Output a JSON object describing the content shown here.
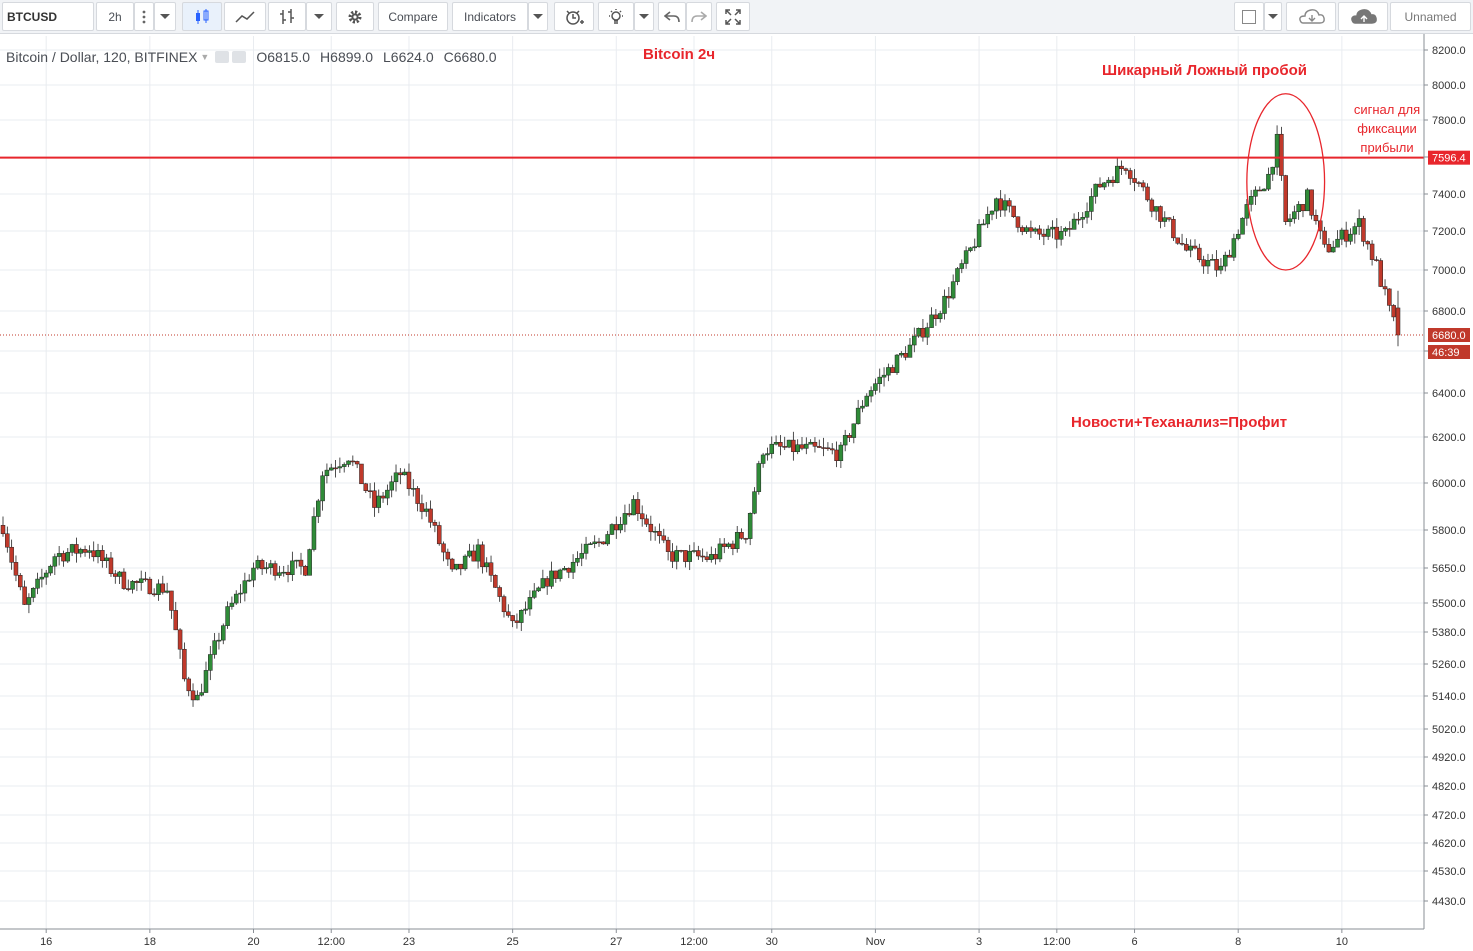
{
  "toolbar": {
    "symbol": "BTCUSD",
    "interval": "2h",
    "compare_label": "Compare",
    "indicators_label": "Indicators",
    "layout_name": "Unnamed"
  },
  "legend": {
    "symbol_title": "Bitcoin / Dollar, 120, BITFINEX",
    "open_label": "O",
    "open": "6815.0",
    "high_label": "H",
    "high": "6899.0",
    "low_label": "L",
    "low": "6624.0",
    "close_label": "C",
    "close": "6680.0"
  },
  "annotations": {
    "title": "Bitcoin 2ч",
    "false_breakout": "Шикарный Ложный пробой",
    "signal_line1": "сигнал для",
    "signal_line2": "фиксации",
    "signal_line3": "прибыли",
    "news": "Новости+Теханализ=Профит"
  },
  "colors": {
    "up": "#2f8b38",
    "down": "#c0392b",
    "resistance": "#e8262c",
    "price_tag": "#e8262c",
    "annotation": "#e8262c",
    "grid": "#e9ecf0"
  },
  "chart_data": {
    "type": "candlestick",
    "symbol": "BTCUSD",
    "exchange": "BITFINEX",
    "interval_minutes": 120,
    "y_scale": "log",
    "ylim": [
      4380,
      8250
    ],
    "yticks": [
      8200,
      8000,
      7800,
      7600,
      7400,
      7200,
      7000,
      6800,
      6600,
      6400,
      6200,
      6000,
      5800,
      5650,
      5500,
      5380,
      5260,
      5140,
      5020,
      4920,
      4820,
      4720,
      4620,
      4530,
      4430
    ],
    "ytick_labels": [
      "8200.0",
      "8000.0",
      "7800.0",
      "7600.0",
      "7400.0",
      "7200.0",
      "7000.0",
      "6800.0",
      "6600.0",
      "6400.0",
      "6200.0",
      "6000.0",
      "5800.0",
      "5650.0",
      "5500.0",
      "5380.0",
      "5260.0",
      "5140.0",
      "5020.0",
      "4920.0",
      "4820.0",
      "4720.0",
      "4620.0",
      "4530.0",
      "4430.0"
    ],
    "xtick_labels": [
      "16",
      "18",
      "20",
      "12:00",
      "23",
      "25",
      "27",
      "12:00",
      "30",
      "Nov",
      "3",
      "12:00",
      "6",
      "8",
      "10"
    ],
    "x_range": [
      "2018-10-15T04:00",
      "2018-11-11T02:00"
    ],
    "xticks": [
      "2018-10-16T00:00",
      "2018-10-18T00:00",
      "2018-10-20T00:00",
      "2018-10-21T12:00",
      "2018-10-23T00:00",
      "2018-10-25T00:00",
      "2018-10-27T00:00",
      "2018-10-28T12:00",
      "2018-10-30T00:00",
      "2018-11-01T00:00",
      "2018-11-03T00:00",
      "2018-11-04T12:00",
      "2018-11-06T00:00",
      "2018-11-08T00:00",
      "2018-11-10T00:00"
    ],
    "anchors": [
      [
        "2018-10-15T04:00",
        5820
      ],
      [
        "2018-10-15T14:00",
        5480
      ],
      [
        "2018-10-16T04:00",
        5700
      ],
      [
        "2018-10-16T20:00",
        5730
      ],
      [
        "2018-10-17T12:00",
        5590
      ],
      [
        "2018-10-18T08:00",
        5560
      ],
      [
        "2018-10-18T16:00",
        5200
      ],
      [
        "2018-10-18T22:00",
        5130
      ],
      [
        "2018-10-19T12:00",
        5460
      ],
      [
        "2018-10-20T00:00",
        5650
      ],
      [
        "2018-10-21T00:00",
        5650
      ],
      [
        "2018-10-21T08:00",
        6050
      ],
      [
        "2018-10-21T20:00",
        6120
      ],
      [
        "2018-10-22T08:00",
        5900
      ],
      [
        "2018-10-22T20:00",
        6040
      ],
      [
        "2018-10-23T08:00",
        5880
      ],
      [
        "2018-10-23T20:00",
        5620
      ],
      [
        "2018-10-24T08:00",
        5720
      ],
      [
        "2018-10-25T00:00",
        5400
      ],
      [
        "2018-10-25T16:00",
        5600
      ],
      [
        "2018-10-26T16:00",
        5750
      ],
      [
        "2018-10-27T08:00",
        5920
      ],
      [
        "2018-10-28T00:00",
        5700
      ],
      [
        "2018-10-28T20:00",
        5690
      ],
      [
        "2018-10-29T12:00",
        5790
      ],
      [
        "2018-10-29T20:00",
        6150
      ],
      [
        "2018-10-30T12:00",
        6150
      ],
      [
        "2018-10-31T08:00",
        6130
      ],
      [
        "2018-10-31T20:00",
        6400
      ],
      [
        "2018-11-01T16:00",
        6620
      ],
      [
        "2018-11-02T08:00",
        6850
      ],
      [
        "2018-11-02T20:00",
        7100
      ],
      [
        "2018-11-03T08:00",
        7380
      ],
      [
        "2018-11-04T00:00",
        7180
      ],
      [
        "2018-11-04T16:00",
        7180
      ],
      [
        "2018-11-05T08:00",
        7450
      ],
      [
        "2018-11-05T20:00",
        7560
      ],
      [
        "2018-11-06T08:00",
        7350
      ],
      [
        "2018-11-07T00:00",
        7100
      ],
      [
        "2018-11-07T16:00",
        7000
      ],
      [
        "2018-11-08T04:00",
        7320
      ],
      [
        "2018-11-08T14:00",
        7500
      ],
      [
        "2018-11-08T18:00",
        7680
      ],
      [
        "2018-11-08T22:00",
        7240
      ],
      [
        "2018-11-09T08:00",
        7380
      ],
      [
        "2018-11-09T16:00",
        7100
      ],
      [
        "2018-11-10T08:00",
        7240
      ],
      [
        "2018-11-10T16:00",
        7020
      ],
      [
        "2018-11-10T22:00",
        6800
      ],
      [
        "2018-11-11T02:00",
        6680
      ]
    ],
    "last_bar": {
      "open": 6815.0,
      "high": 6899.0,
      "low": 6624.0,
      "close": 6680.0
    },
    "resistance_price": 7596.4,
    "resistance_label": "7596.4",
    "last_price_label": "6680.0",
    "countdown_label": "46:39",
    "ellipse_annotation": {
      "price_high": 7950,
      "price_low": 7000,
      "time_start": "2018-11-08T04:00",
      "time_end": "2018-11-09T16:00"
    }
  }
}
